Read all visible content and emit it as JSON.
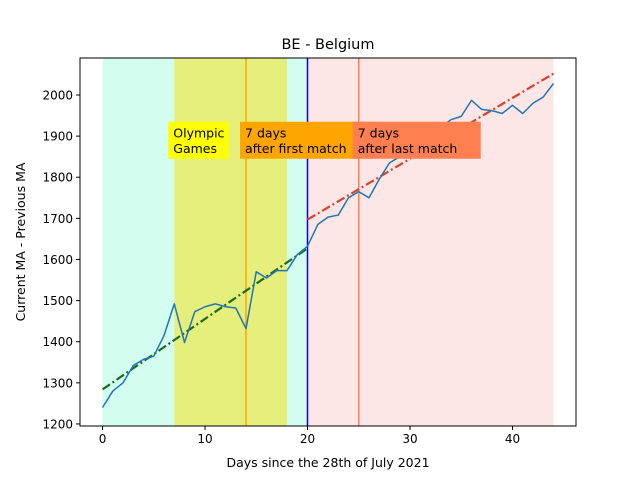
{
  "chart_data": {
    "type": "line",
    "title": "BE - Belgium",
    "xlabel": "Days since the 28th of July 2021",
    "ylabel": "Current MA - Previous MA",
    "xlim": [
      -2.2,
      46.2
    ],
    "ylim": [
      1195,
      2090
    ],
    "xticks": [
      0,
      10,
      20,
      30,
      40
    ],
    "yticks": [
      1200,
      1300,
      1400,
      1500,
      1600,
      1700,
      1800,
      1900,
      2000
    ],
    "grid": false,
    "legend": "none",
    "series": [
      {
        "color": "#1f77b4",
        "x": [
          0,
          1,
          2,
          3,
          4,
          5,
          6,
          7,
          8,
          9,
          10,
          11,
          12,
          13,
          14,
          15,
          16,
          17,
          18,
          19,
          20,
          21,
          22,
          23,
          24,
          25,
          26,
          27,
          28,
          29,
          30,
          31,
          32,
          33,
          34,
          35,
          36,
          37,
          38,
          39,
          40,
          41,
          42,
          43,
          44
        ],
        "y": [
          1240,
          1280,
          1300,
          1342,
          1357,
          1365,
          1415,
          1492,
          1398,
          1473,
          1485,
          1492,
          1485,
          1482,
          1432,
          1570,
          1555,
          1573,
          1573,
          1612,
          1632,
          1685,
          1703,
          1708,
          1750,
          1765,
          1750,
          1795,
          1835,
          1850,
          1876,
          1890,
          1905,
          1922,
          1940,
          1948,
          1987,
          1965,
          1962,
          1955,
          1975,
          1955,
          1980,
          1995,
          2028
        ]
      }
    ],
    "fits": [
      {
        "color": "#1b6b1b",
        "x": [
          0,
          20
        ],
        "y": [
          1284,
          1627
        ]
      },
      {
        "color": "#d9432b",
        "x": [
          20,
          44
        ],
        "y": [
          1697,
          2052
        ]
      }
    ],
    "regions": [
      {
        "x0": 0,
        "x1": 7,
        "color": "#d3fdef"
      },
      {
        "x0": 7,
        "x1": 18,
        "color": "#e6ee7c"
      },
      {
        "x0": 18,
        "x1": 20,
        "color": "#d3fdef"
      },
      {
        "x0": 20,
        "x1": 44,
        "color": "#fde6e6"
      }
    ],
    "vlines": [
      {
        "x": 14,
        "color": "#ffa500"
      },
      {
        "x": 20,
        "color": "#0000ff"
      },
      {
        "x": 25,
        "color": "#ff7f50"
      }
    ],
    "annotations": [
      {
        "lines": [
          "Olympic",
          "Games"
        ],
        "x": 7,
        "y": 1890,
        "bg": "#ffff00"
      },
      {
        "lines": [
          "7 days",
          "after first match"
        ],
        "x": 14,
        "y": 1890,
        "bg": "#ffa500"
      },
      {
        "lines": [
          "7 days",
          "after last match"
        ],
        "x": 25,
        "y": 1890,
        "bg": "#ff7f50"
      }
    ]
  }
}
